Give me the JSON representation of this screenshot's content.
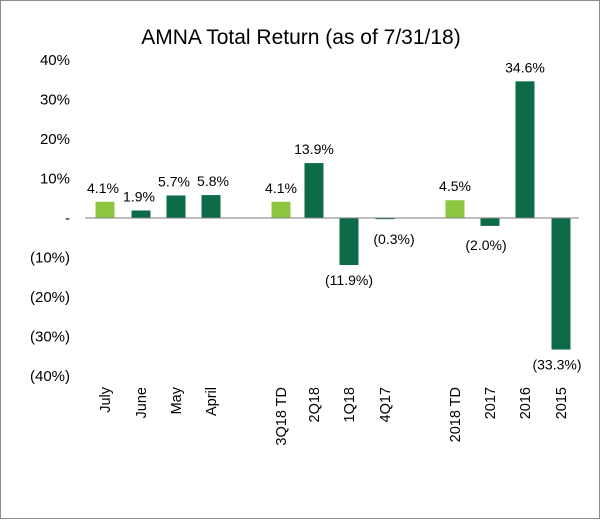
{
  "chart_data": {
    "type": "bar",
    "title": "AMNA Total Return (as of 7/31/18)",
    "xlabel": "",
    "ylabel": "",
    "ylim": [
      -40,
      40
    ],
    "yticks": [
      {
        "value": 40,
        "label": "40%"
      },
      {
        "value": 30,
        "label": "30%"
      },
      {
        "value": 20,
        "label": "20%"
      },
      {
        "value": 10,
        "label": "10%"
      },
      {
        "value": 0,
        "label": "-"
      },
      {
        "value": -10,
        "label": "(10%)"
      },
      {
        "value": -20,
        "label": "(20%)"
      },
      {
        "value": -30,
        "label": "(30%)"
      },
      {
        "value": -40,
        "label": "(40%)"
      }
    ],
    "grid": false,
    "legend": "none",
    "colors": {
      "highlight": "#8dc63f",
      "standard": "#0e6b47"
    },
    "bars": [
      {
        "category": "July",
        "value": 4.1,
        "label": "4.1%",
        "highlight": true
      },
      {
        "category": "June",
        "value": 1.9,
        "label": "1.9%",
        "highlight": false
      },
      {
        "category": "May",
        "value": 5.7,
        "label": "5.7%",
        "highlight": false
      },
      {
        "category": "April",
        "value": 5.8,
        "label": "5.8%",
        "highlight": false
      },
      {
        "category": "3Q18 TD",
        "value": 4.1,
        "label": "4.1%",
        "highlight": true
      },
      {
        "category": "2Q18",
        "value": 13.9,
        "label": "13.9%",
        "highlight": false
      },
      {
        "category": "1Q18",
        "value": -11.9,
        "label": "(11.9%)",
        "highlight": false
      },
      {
        "category": "4Q17",
        "value": -0.3,
        "label": "(0.3%)",
        "highlight": false
      },
      {
        "category": "2018 TD",
        "value": 4.5,
        "label": "4.5%",
        "highlight": true
      },
      {
        "category": "2017",
        "value": -2.0,
        "label": "(2.0%)",
        "highlight": false
      },
      {
        "category": "2016",
        "value": 34.6,
        "label": "34.6%",
        "highlight": false
      },
      {
        "category": "2015",
        "value": -33.3,
        "label": "(33.3%)",
        "highlight": false
      }
    ]
  }
}
